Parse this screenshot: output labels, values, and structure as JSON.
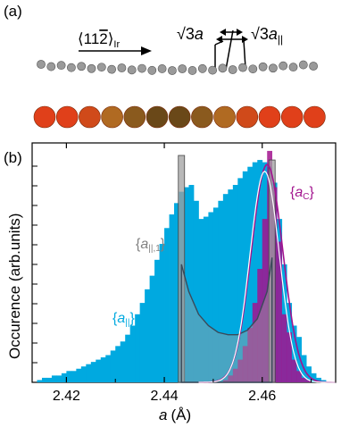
{
  "panel_a": {
    "label": "(a)",
    "direction_text": "⟨11",
    "direction_bar_digit": "2",
    "direction_close": "⟩",
    "direction_sub": "Ir",
    "sqrt3_a": "√3",
    "a_symbol": "a",
    "sqrt3_a_par": "√3",
    "a_par_symbol": "a",
    "a_par_sub": "||"
  },
  "panel_b": {
    "label": "(b)",
    "ylabel": "Occurence (arb.units)",
    "xlabel_symbol": "a",
    "xlabel_unit": "(Å)",
    "legend_a_par": "{a||}",
    "legend_a_par_1": "{a||,1}",
    "legend_a_c": "{aC}"
  },
  "colors": {
    "cyan": "#00a9e0",
    "magenta": "#a2138e",
    "gray_bar": "#a0a0a0",
    "dark_line": "#3a4a5a",
    "atom_gray": "#8c8c8c"
  },
  "chart_data": {
    "type": "bar",
    "xlabel": "a (Å)",
    "ylabel": "Occurence (arb.units)",
    "xlim": [
      2.413,
      2.475
    ],
    "ylim": [
      0,
      1.0
    ],
    "xticks": [
      "2.42",
      "2.44",
      "2.46"
    ],
    "xtick_values": [
      2.42,
      2.44,
      2.46
    ],
    "grid": false,
    "series": [
      {
        "name": "{a||}",
        "color": "#00a9e0",
        "x": [
          2.413,
          2.414,
          2.415,
          2.416,
          2.417,
          2.418,
          2.419,
          2.42,
          2.421,
          2.422,
          2.423,
          2.424,
          2.425,
          2.426,
          2.427,
          2.428,
          2.429,
          2.43,
          2.431,
          2.432,
          2.433,
          2.434,
          2.435,
          2.436,
          2.437,
          2.438,
          2.439,
          2.44,
          2.441,
          2.442,
          2.443,
          2.444,
          2.445,
          2.446,
          2.447,
          2.448,
          2.449,
          2.45,
          2.451,
          2.452,
          2.453,
          2.454,
          2.455,
          2.456,
          2.457,
          2.458,
          2.459,
          2.46,
          2.461,
          2.462,
          2.463,
          2.464,
          2.465,
          2.466,
          2.467,
          2.468,
          2.469,
          2.47,
          2.471,
          2.472,
          2.473,
          2.474
        ],
        "values": [
          0.0,
          0.01,
          0.02,
          0.02,
          0.03,
          0.03,
          0.04,
          0.05,
          0.05,
          0.06,
          0.07,
          0.08,
          0.09,
          0.1,
          0.11,
          0.12,
          0.14,
          0.16,
          0.18,
          0.21,
          0.25,
          0.3,
          0.35,
          0.41,
          0.47,
          0.54,
          0.61,
          0.68,
          0.74,
          0.79,
          0.84,
          0.86,
          0.87,
          0.8,
          0.72,
          0.73,
          0.75,
          0.77,
          0.8,
          0.83,
          0.85,
          0.87,
          0.9,
          0.93,
          0.95,
          0.97,
          0.98,
          0.97,
          0.95,
          0.88,
          0.72,
          0.52,
          0.35,
          0.25,
          0.2,
          0.12,
          0.07,
          0.04,
          0.02,
          0.01,
          0.0,
          0.0
        ]
      },
      {
        "name": "{aC}",
        "color": "#a2138e",
        "x": [
          2.452,
          2.453,
          2.454,
          2.455,
          2.456,
          2.457,
          2.458,
          2.459,
          2.46,
          2.461,
          2.462,
          2.463,
          2.464,
          2.465,
          2.466,
          2.467,
          2.468,
          2.469,
          2.47
        ],
        "values": [
          0.01,
          0.03,
          0.06,
          0.1,
          0.16,
          0.24,
          0.35,
          0.5,
          0.72,
          1.02,
          0.86,
          0.62,
          0.3,
          0.22,
          0.1,
          0.05,
          0.02,
          0.01,
          0.0
        ]
      },
      {
        "name": "{a||,1}",
        "color": "#a0a0a0",
        "x": [
          2.4435,
          2.462
        ],
        "values": [
          1.0,
          0.98
        ]
      }
    ],
    "annotations": [
      "{a||}",
      "{a||,1}",
      "{aC}"
    ]
  }
}
